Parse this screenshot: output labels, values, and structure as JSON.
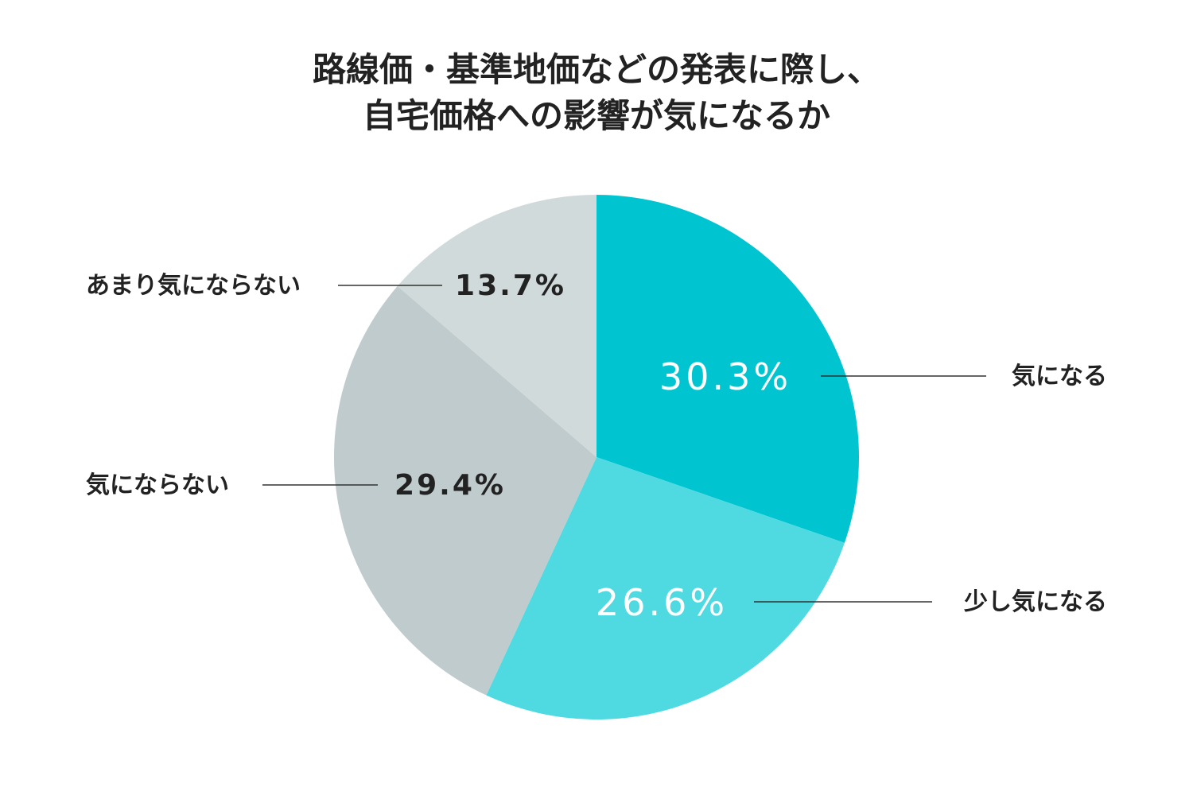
{
  "chart_data": {
    "type": "pie",
    "title_lines": [
      "路線価・基準地価などの発表に際し、",
      "自宅価格への影響が気になるか"
    ],
    "start_angle_deg": 0,
    "direction": "clockwise",
    "slices": [
      {
        "label": "気になる",
        "value": 30.3,
        "display": "30.3%",
        "color": "#00c5d1"
      },
      {
        "label": "少し気になる",
        "value": 26.6,
        "display": "26.6%",
        "color": "#4fdae2"
      },
      {
        "label": "気にならない",
        "value": 29.4,
        "display": "29.4%",
        "color": "#bfcbcc"
      },
      {
        "label": "あまり気にならない",
        "value": 13.7,
        "display": "13.7%",
        "color": "#d1dada"
      }
    ]
  }
}
